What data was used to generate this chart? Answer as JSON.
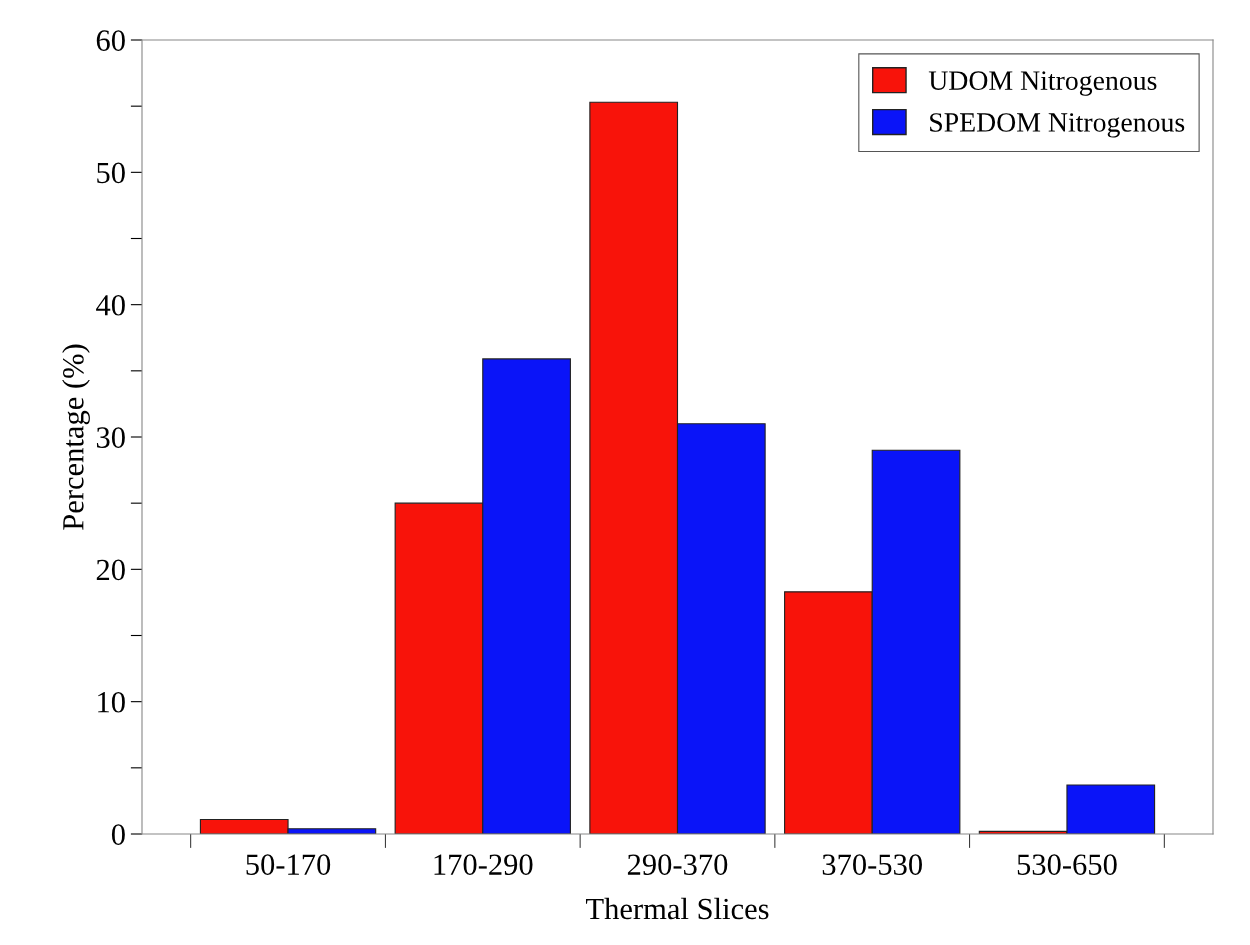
{
  "chart_data": {
    "type": "bar",
    "xlabel": "Thermal Slices",
    "ylabel": "Percentage (%)",
    "categories": [
      "50-170",
      "170-290",
      "290-370",
      "370-530",
      "530-650"
    ],
    "series": [
      {
        "name": "UDOM Nitrogenous",
        "color": "#f8130a",
        "values": [
          1.1,
          25.0,
          55.3,
          18.3,
          0.2
        ]
      },
      {
        "name": "SPEDOM Nitrogenous",
        "color": "#0a14f8",
        "values": [
          0.4,
          35.9,
          31.0,
          29.0,
          3.7
        ]
      }
    ],
    "ylim": [
      0,
      60
    ],
    "yticks": [
      0,
      {
        "value": 5,
        "label": null
      },
      10,
      {
        "value": 15,
        "label": null
      },
      20,
      {
        "value": 25,
        "label": null
      },
      30,
      {
        "value": 35,
        "label": null
      },
      40,
      {
        "value": 45,
        "label": null
      },
      50,
      {
        "value": 55,
        "label": null
      },
      60
    ],
    "grid": false,
    "legend": "top right"
  }
}
